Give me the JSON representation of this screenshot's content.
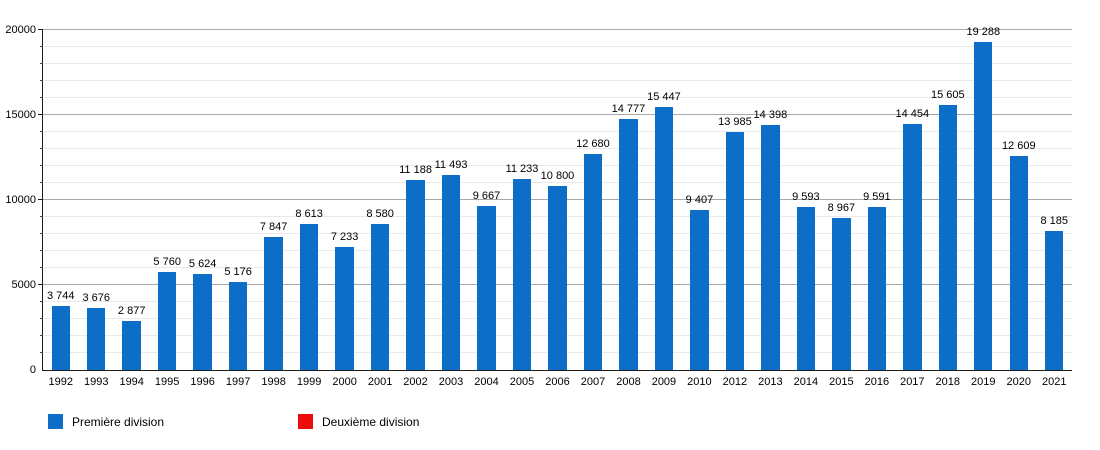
{
  "chart_data": {
    "type": "bar",
    "title": "",
    "xlabel": "",
    "ylabel": "",
    "categories": [
      "1992",
      "1993",
      "1994",
      "1995",
      "1996",
      "1997",
      "1998",
      "1999",
      "2000",
      "2001",
      "2002",
      "2003",
      "2004",
      "2005",
      "2006",
      "2007",
      "2008",
      "2009",
      "2010",
      "2012",
      "2013",
      "2014",
      "2015",
      "2016",
      "2017",
      "2018",
      "2019",
      "2020",
      "2021"
    ],
    "values": [
      3744,
      3676,
      2877,
      5760,
      5624,
      5176,
      7847,
      8613,
      7233,
      8580,
      11188,
      11493,
      9667,
      11233,
      10800,
      12680,
      14777,
      15447,
      9407,
      13985,
      14398,
      9593,
      8967,
      9591,
      14454,
      15605,
      19288,
      12609,
      8185
    ],
    "value_labels": [
      "3 744",
      "3 676",
      "2 877",
      "5 760",
      "5 624",
      "5 176",
      "7 847",
      "8 613",
      "7 233",
      "8 580",
      "11 188",
      "11 493",
      "9 667",
      "11 233",
      "10 800",
      "12 680",
      "14 777",
      "15 447",
      "9 407",
      "13 985",
      "14 398",
      "9 593",
      "8 967",
      "9 591",
      "14 454",
      "15 605",
      "19 288",
      "12 609",
      "8 185"
    ],
    "ylim": [
      0,
      20000
    ],
    "y_major_step": 5000,
    "y_minor_step": 1000,
    "y_tick_labels": [
      "0",
      "5000",
      "10000",
      "15000",
      "20000"
    ],
    "grid": true,
    "legend_position": "bottom",
    "bar_color": "#0c6ec6",
    "legend": {
      "items": [
        {
          "label": "Première division",
          "color": "#0c6ec6"
        },
        {
          "label": "Deuxième division",
          "color": "#ee0d0d"
        }
      ]
    }
  }
}
